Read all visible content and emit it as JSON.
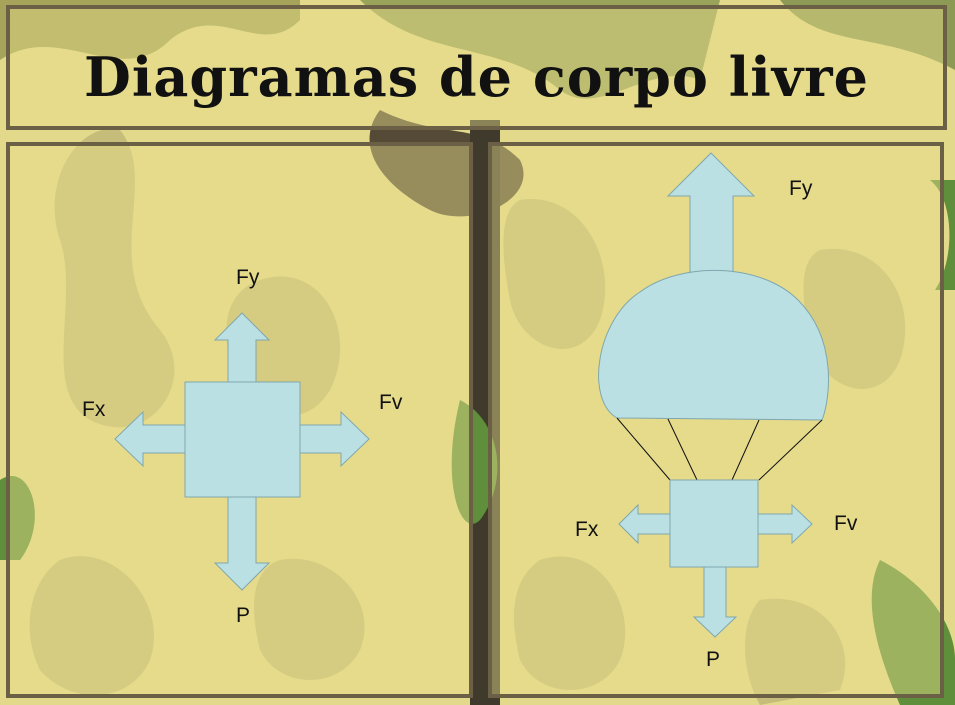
{
  "title": "Diagramas de corpo livre",
  "colors": {
    "shape_fill": "#bbe0e3",
    "shape_stroke": "#7fa7ae",
    "panel_border": "#6b5f45",
    "camo_base": "#e3d98b"
  },
  "left_diagram": {
    "labels": {
      "up": "Fy",
      "left": "Fx",
      "right": "Fv",
      "down": "P"
    }
  },
  "right_diagram": {
    "labels": {
      "up": "Fy",
      "left": "Fx",
      "right": "Fv",
      "down": "P"
    }
  }
}
